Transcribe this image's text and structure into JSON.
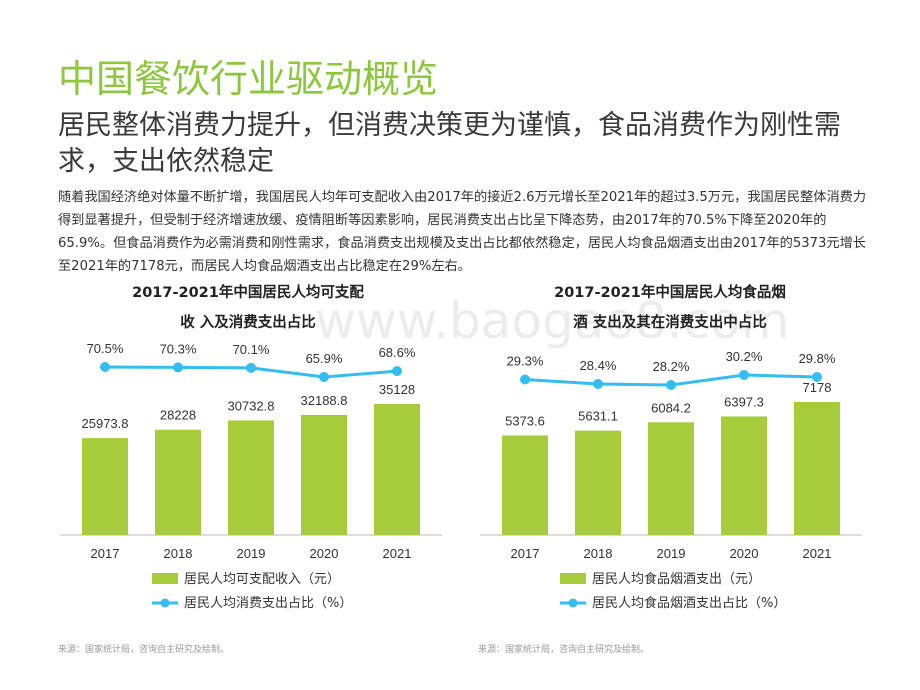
{
  "page": {
    "title": "中国餐饮行业驱动概览",
    "subtitle": "居民整体消费力提升，但消费决策更为谨慎，食品消费作为刚性需求，支出依然稳定",
    "paragraph": "随着我国经济绝对体量不断扩增，我国居民人均年可支配收入由2017年的接近2.6万元增长至2021年的超过3.5万元，我国居民整体消费力得到显著提升，但受制于经济增速放缓、疫情阻断等因素影响，居民消费支出占比呈下降态势，由2017年的70.5%下降至2020年的65.9%。但食品消费作为必需消费和刚性需求，食品消费支出规模及支出占比都依然稳定，居民人均食品烟酒支出由2017年的5373元增长至2021年的7178元，而居民人均食品烟酒支出占比稳定在29%左右。",
    "watermark": "www.baogao8.com",
    "source_left": "来源：国家统计局，咨询自主研究及绘制。",
    "source_right": "来源：国家统计局，咨询自主研究及绘制。"
  },
  "colors": {
    "accent": "#8dc63f",
    "bar": "#a6cc3c",
    "line": "#33bdf0"
  },
  "chart_data": [
    {
      "type": "bar",
      "title_line1": "2017-2021年中国居民人均可支配",
      "title_line2": "收 入及消费支出占比",
      "categories": [
        "2017",
        "2018",
        "2019",
        "2020",
        "2021"
      ],
      "series": [
        {
          "name": "居民人均可支配收入（元）",
          "type": "bar",
          "values": [
            25973.8,
            28228,
            30732.8,
            32188.8,
            35128
          ],
          "labels": [
            "25973.8",
            "28228",
            "30732.8",
            "32188.8",
            "35128"
          ]
        },
        {
          "name": "居民人均消费支出占比（%）",
          "type": "line",
          "values": [
            70.5,
            70.3,
            70.1,
            65.9,
            68.6
          ],
          "labels": [
            "70.5%",
            "70.3%",
            "70.1%",
            "65.9%",
            "68.6%"
          ]
        }
      ]
    },
    {
      "type": "bar",
      "title_line1": "2017-2021年中国居民人均食品烟",
      "title_line2": "酒 支出及其在消费支出中占比",
      "categories": [
        "2017",
        "2018",
        "2019",
        "2020",
        "2021"
      ],
      "series": [
        {
          "name": "居民人均食品烟酒支出（元）",
          "type": "bar",
          "values": [
            5373.6,
            5631.1,
            6084.2,
            6397.3,
            7178
          ],
          "labels": [
            "5373.6",
            "5631.1",
            "6084.2",
            "6397.3",
            "7178"
          ]
        },
        {
          "name": "居民人均食品烟酒支出占比（%）",
          "type": "line",
          "values": [
            29.3,
            28.4,
            28.2,
            30.2,
            29.8
          ],
          "labels": [
            "29.3%",
            "28.4%",
            "28.2%",
            "30.2%",
            "29.8%"
          ]
        }
      ]
    }
  ]
}
